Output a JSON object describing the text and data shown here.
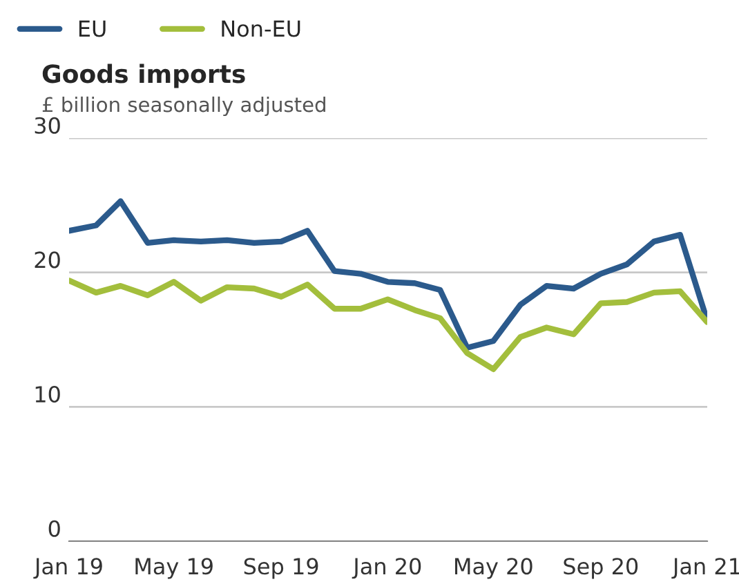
{
  "chart_data": {
    "type": "line",
    "title": "Goods imports",
    "subtitle": "£ billion seasonally adjusted",
    "x": [
      "2019-01",
      "2019-02",
      "2019-03",
      "2019-04",
      "2019-05",
      "2019-06",
      "2019-07",
      "2019-08",
      "2019-09",
      "2019-10",
      "2019-11",
      "2019-12",
      "2020-01",
      "2020-02",
      "2020-03",
      "2020-04",
      "2020-05",
      "2020-06",
      "2020-07",
      "2020-08",
      "2020-09",
      "2020-10",
      "2020-11",
      "2020-12",
      "2021-01"
    ],
    "series": [
      {
        "name": "EU",
        "color": "#2b5a8c",
        "values": [
          23.1,
          23.5,
          25.3,
          22.2,
          22.4,
          22.3,
          22.4,
          22.2,
          22.3,
          23.1,
          20.1,
          19.9,
          19.3,
          19.2,
          18.7,
          14.4,
          14.9,
          17.6,
          19.0,
          18.8,
          19.9,
          20.6,
          22.3,
          22.8,
          16.4
        ]
      },
      {
        "name": "Non-EU",
        "color": "#a3be3c",
        "values": [
          19.4,
          18.5,
          19.0,
          18.3,
          19.3,
          17.9,
          18.9,
          18.8,
          18.2,
          19.1,
          17.3,
          17.3,
          18.0,
          17.2,
          16.6,
          14.0,
          12.8,
          15.2,
          15.9,
          15.4,
          17.7,
          17.8,
          18.5,
          18.6,
          16.3
        ]
      }
    ],
    "xlim": [
      "2019-01",
      "2021-01"
    ],
    "xticks": [
      {
        "value": "2019-01",
        "label": "Jan 19"
      },
      {
        "value": "2019-05",
        "label": "May 19"
      },
      {
        "value": "2019-09",
        "label": "Sep 19"
      },
      {
        "value": "2020-01",
        "label": "Jan 20"
      },
      {
        "value": "2020-05",
        "label": "May 20"
      },
      {
        "value": "2020-09",
        "label": "Sep 20"
      },
      {
        "value": "2021-01",
        "label": "Jan 21"
      }
    ],
    "ylim": [
      0,
      30
    ],
    "yticks": [
      0,
      10,
      20,
      30
    ],
    "grid": "y",
    "legend": "top left",
    "line_style": "solid",
    "marker": "none"
  }
}
